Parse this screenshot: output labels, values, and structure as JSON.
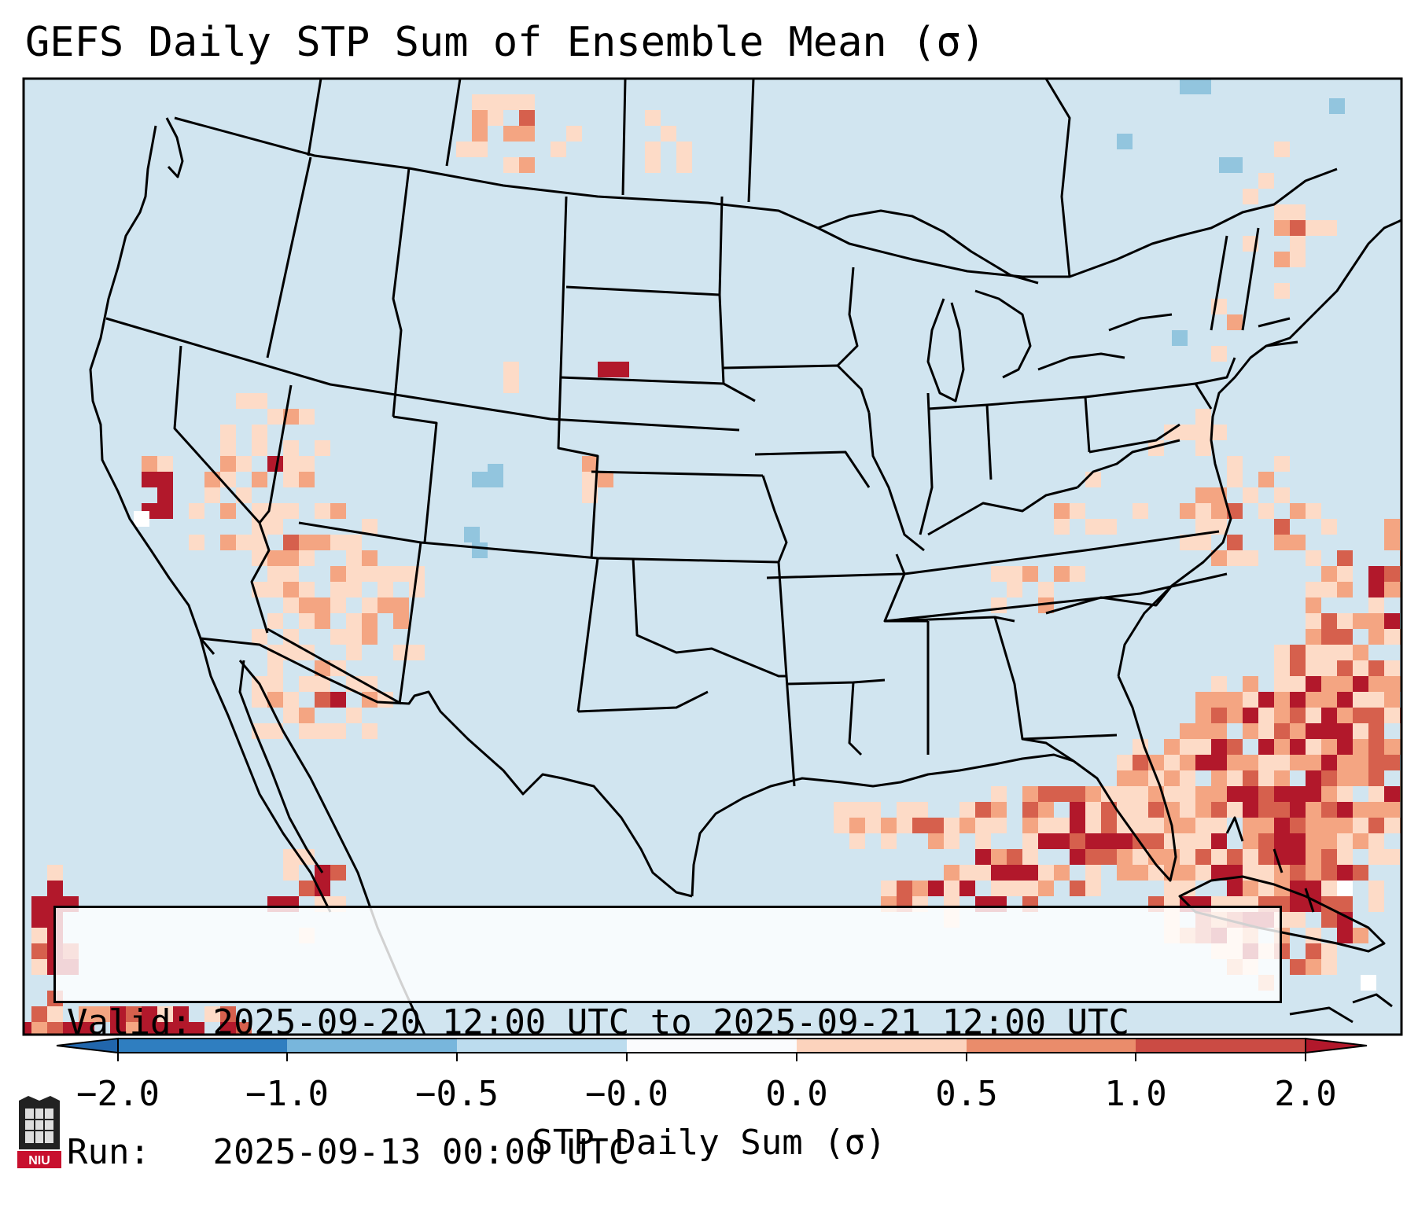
{
  "title": "GEFS Daily STP Sum of Ensemble Mean (σ)",
  "info": {
    "valid_label": "Valid:",
    "valid_value": "2025-09-20 12:00 UTC to 2025-09-21 12:00 UTC",
    "run_label": "Run:",
    "run_value": "2025-09-13 00:00 UTC"
  },
  "colorbar": {
    "label": "STP Daily Sum (σ)",
    "ticks": [
      "−2.0",
      "−1.0",
      "−0.5",
      "−0.0",
      "0.0",
      "0.5",
      "1.0",
      "2.0"
    ],
    "segment_colors": [
      "#2f7ec0",
      "#78b6dc",
      "#bcdcee",
      "#fafbfd",
      "#fcd3bd",
      "#ea8c6b",
      "#cb4b44"
    ],
    "extend_min_color": "#2166ac",
    "extend_max_color": "#b2182b"
  },
  "map": {
    "ocean_color": "#d1e5f0",
    "neutral_color": "#d1e5f0",
    "border_color": "#000000",
    "level_colors": {
      "p1": "#fddbc7",
      "p2": "#f4a582",
      "p3": "#d6604d",
      "p4": "#b2182b",
      "n1": "#92c5de",
      "w": "#ffffff"
    }
  },
  "logo": {
    "text": "NIU"
  }
}
